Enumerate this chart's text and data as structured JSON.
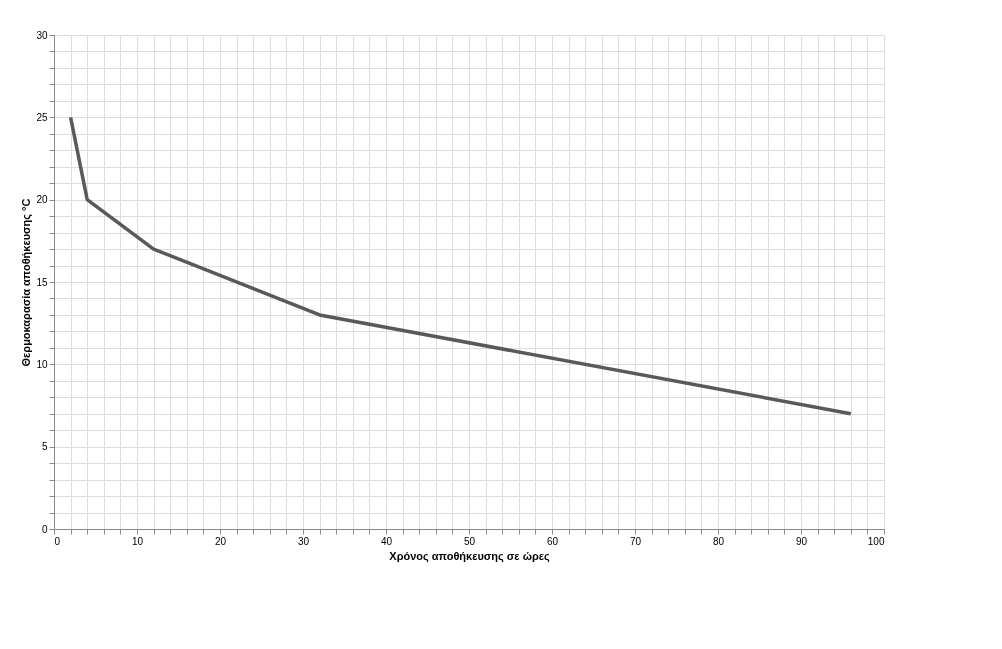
{
  "chart_data": {
    "type": "line",
    "xlabel": "Χρόνος αποθήκευσης σε ώρες",
    "ylabel": "Θερμοκαρασία αποθήκευσης °C",
    "x": [
      2,
      4,
      12,
      32,
      96
    ],
    "series": [
      {
        "color": "#595959",
        "values": [
          25,
          20,
          17,
          13,
          7
        ]
      }
    ],
    "xlim": [
      0,
      100
    ],
    "xticks": [
      0,
      {
        "value": 2,
        "label": null
      },
      {
        "value": 4,
        "label": null
      },
      {
        "value": 6,
        "label": null
      },
      {
        "value": 8,
        "label": null
      },
      10,
      {
        "value": 12,
        "label": null
      },
      {
        "value": 14,
        "label": null
      },
      {
        "value": 16,
        "label": null
      },
      {
        "value": 18,
        "label": null
      },
      20,
      {
        "value": 22,
        "label": null
      },
      {
        "value": 24,
        "label": null
      },
      {
        "value": 26,
        "label": null
      },
      {
        "value": 28,
        "label": null
      },
      30,
      {
        "value": 32,
        "label": null
      },
      {
        "value": 34,
        "label": null
      },
      {
        "value": 36,
        "label": null
      },
      {
        "value": 38,
        "label": null
      },
      40,
      {
        "value": 42,
        "label": null
      },
      {
        "value": 44,
        "label": null
      },
      {
        "value": 46,
        "label": null
      },
      {
        "value": 48,
        "label": null
      },
      50,
      {
        "value": 52,
        "label": null
      },
      {
        "value": 54,
        "label": null
      },
      {
        "value": 56,
        "label": null
      },
      {
        "value": 58,
        "label": null
      },
      60,
      {
        "value": 62,
        "label": null
      },
      {
        "value": 64,
        "label": null
      },
      {
        "value": 66,
        "label": null
      },
      {
        "value": 68,
        "label": null
      },
      70,
      {
        "value": 72,
        "label": null
      },
      {
        "value": 74,
        "label": null
      },
      {
        "value": 76,
        "label": null
      },
      {
        "value": 78,
        "label": null
      },
      80,
      {
        "value": 82,
        "label": null
      },
      {
        "value": 84,
        "label": null
      },
      {
        "value": 86,
        "label": null
      },
      {
        "value": 88,
        "label": null
      },
      90,
      {
        "value": 92,
        "label": null
      },
      {
        "value": 94,
        "label": null
      },
      {
        "value": 96,
        "label": null
      },
      {
        "value": 98,
        "label": null
      },
      100
    ],
    "ylim": [
      0,
      30
    ],
    "yticks": [
      0,
      {
        "value": 1,
        "label": null
      },
      {
        "value": 2,
        "label": null
      },
      {
        "value": 3,
        "label": null
      },
      {
        "value": 4,
        "label": null
      },
      5,
      {
        "value": 6,
        "label": null
      },
      {
        "value": 7,
        "label": null
      },
      {
        "value": 8,
        "label": null
      },
      {
        "value": 9,
        "label": null
      },
      10,
      {
        "value": 11,
        "label": null
      },
      {
        "value": 12,
        "label": null
      },
      {
        "value": 13,
        "label": null
      },
      {
        "value": 14,
        "label": null
      },
      15,
      {
        "value": 16,
        "label": null
      },
      {
        "value": 17,
        "label": null
      },
      {
        "value": 18,
        "label": null
      },
      {
        "value": 19,
        "label": null
      },
      20,
      {
        "value": 21,
        "label": null
      },
      {
        "value": 22,
        "label": null
      },
      {
        "value": 23,
        "label": null
      },
      {
        "value": 24,
        "label": null
      },
      25,
      {
        "value": 26,
        "label": null
      },
      {
        "value": 27,
        "label": null
      },
      {
        "value": 28,
        "label": null
      },
      {
        "value": 29,
        "label": null
      },
      30
    ],
    "grid": true,
    "marker": "none",
    "line_style": "solid"
  }
}
